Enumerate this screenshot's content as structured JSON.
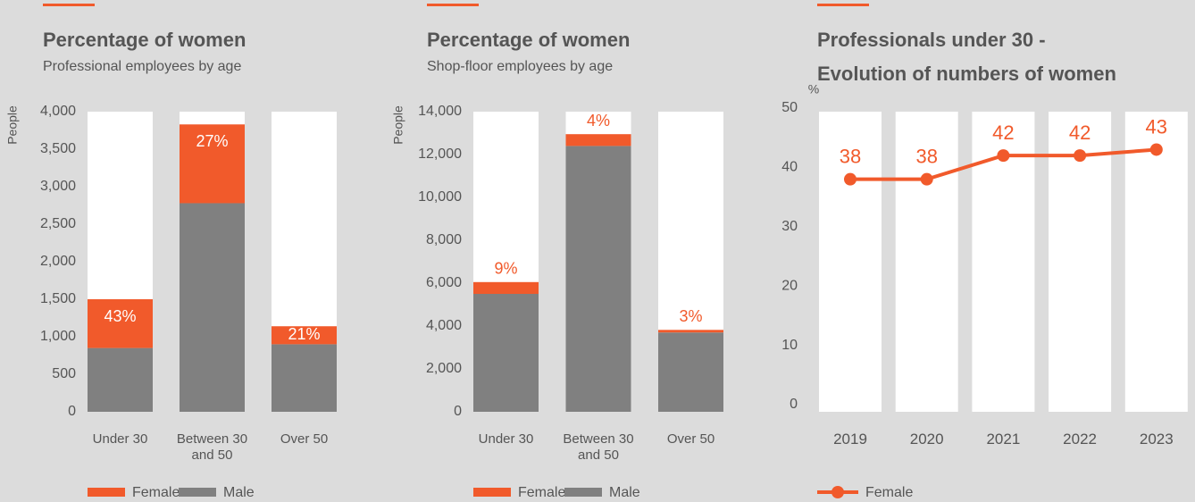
{
  "chart_data": [
    {
      "type": "bar",
      "stacked": true,
      "title": "Percentage of women",
      "subtitle": "Professional employees by age",
      "y_label": "People",
      "categories": [
        "Under 30",
        "Between 30 and 50",
        "Over 50"
      ],
      "series": [
        {
          "name": "Female",
          "color": "#f15a2b",
          "values": [
            650,
            1050,
            240
          ],
          "share_labels": [
            "43%",
            "27%",
            "21%"
          ]
        },
        {
          "name": "Male",
          "color": "#808080",
          "values": [
            850,
            2780,
            900
          ]
        }
      ],
      "ylim": [
        0,
        4000
      ],
      "yticks": [
        0,
        500,
        {
          "value": 1000,
          "label": "1,000"
        },
        {
          "value": 1500,
          "label": "1,500"
        },
        {
          "value": 2000,
          "label": "2,000"
        },
        {
          "value": 2500,
          "label": "2,500"
        },
        {
          "value": 3000,
          "label": "3,000"
        },
        {
          "value": 3500,
          "label": "3,500"
        },
        {
          "value": 4000,
          "label": "4,000"
        }
      ]
    },
    {
      "type": "bar",
      "stacked": true,
      "title": "Percentage of women",
      "subtitle": "Shop-floor employees by age",
      "y_label": "People",
      "categories": [
        "Under 30",
        "Between 30 and 50",
        "Over 50"
      ],
      "series": [
        {
          "name": "Female",
          "color": "#f15a2b",
          "values": [
            550,
            550,
            120
          ],
          "share_labels": [
            "9%",
            "4%",
            "3%"
          ]
        },
        {
          "name": "Male",
          "color": "#808080",
          "values": [
            5500,
            12400,
            3700
          ]
        }
      ],
      "ylim": [
        0,
        14000
      ],
      "yticks": [
        0,
        {
          "value": 2000,
          "label": "2,000"
        },
        {
          "value": 4000,
          "label": "4,000"
        },
        {
          "value": 6000,
          "label": "6,000"
        },
        {
          "value": 8000,
          "label": "8,000"
        },
        {
          "value": 10000,
          "label": "10,000"
        },
        {
          "value": 12000,
          "label": "12,000"
        },
        {
          "value": 14000,
          "label": "14,000"
        }
      ]
    },
    {
      "type": "line",
      "title": "Professionals under 30 - Evolution of numbers of women",
      "y_label": "%",
      "categories": [
        "2019",
        "2020",
        "2021",
        "2022",
        "2023"
      ],
      "series": [
        {
          "name": "Female",
          "color": "#f15a2b",
          "values": [
            38,
            38,
            42,
            42,
            43
          ]
        }
      ],
      "ylim": [
        0,
        50
      ],
      "yticks": [
        0,
        10,
        20,
        30,
        40,
        50
      ]
    }
  ]
}
